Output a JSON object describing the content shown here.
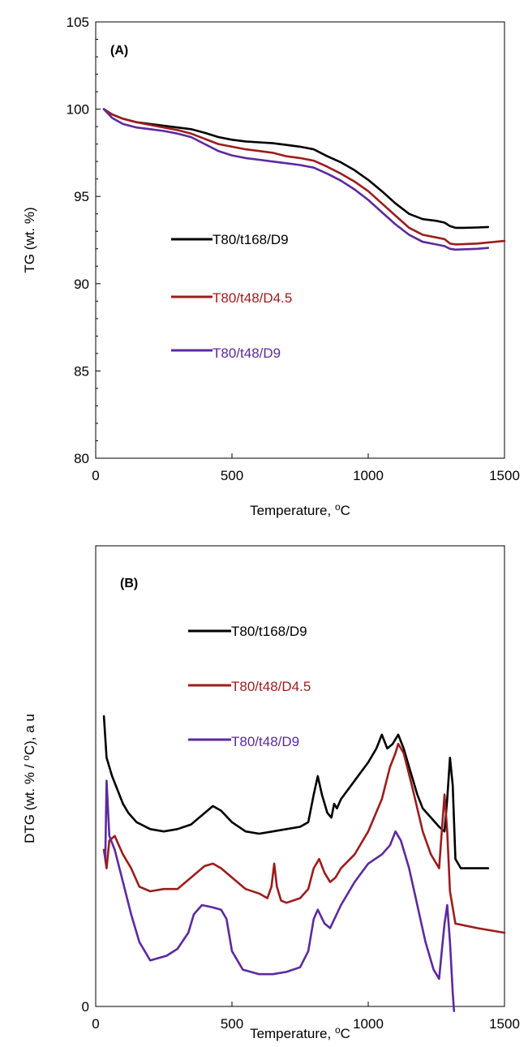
{
  "chart_data": [
    {
      "type": "line",
      "panel_label": "(A)",
      "xlabel": "Temperature,  ",
      "xlabel_sup": "o",
      "xlabel_unit": "C",
      "ylabel": "TG (wt. %)",
      "xlim": [
        0,
        1500
      ],
      "ylim": [
        80,
        105
      ],
      "xticks": [
        0,
        500,
        1000,
        1500
      ],
      "yticks": [
        80,
        85,
        90,
        95,
        100,
        105
      ],
      "grid": false,
      "legend_position": "center-left",
      "series": [
        {
          "name": "T80/t168/D9",
          "color": "#000000",
          "points": [
            [
              30,
              100
            ],
            [
              60,
              99.7
            ],
            [
              100,
              99.45
            ],
            [
              150,
              99.25
            ],
            [
              200,
              99.15
            ],
            [
              250,
              99.05
            ],
            [
              300,
              98.95
            ],
            [
              350,
              98.85
            ],
            [
              400,
              98.65
            ],
            [
              450,
              98.4
            ],
            [
              500,
              98.25
            ],
            [
              550,
              98.15
            ],
            [
              600,
              98.1
            ],
            [
              650,
              98.05
            ],
            [
              700,
              97.95
            ],
            [
              750,
              97.85
            ],
            [
              800,
              97.7
            ],
            [
              850,
              97.3
            ],
            [
              900,
              96.95
            ],
            [
              950,
              96.5
            ],
            [
              1000,
              95.95
            ],
            [
              1050,
              95.3
            ],
            [
              1100,
              94.6
            ],
            [
              1150,
              94.0
            ],
            [
              1200,
              93.7
            ],
            [
              1250,
              93.6
            ],
            [
              1280,
              93.5
            ],
            [
              1300,
              93.3
            ],
            [
              1320,
              93.2
            ],
            [
              1350,
              93.2
            ],
            [
              1400,
              93.22
            ],
            [
              1440,
              93.25
            ]
          ]
        },
        {
          "name": "T80/t48/D4.5",
          "color": "#9c1c1c",
          "points": [
            [
              30,
              100
            ],
            [
              60,
              99.7
            ],
            [
              100,
              99.45
            ],
            [
              150,
              99.25
            ],
            [
              200,
              99.1
            ],
            [
              250,
              98.95
            ],
            [
              300,
              98.8
            ],
            [
              350,
              98.6
            ],
            [
              400,
              98.3
            ],
            [
              450,
              98.0
            ],
            [
              500,
              97.85
            ],
            [
              550,
              97.7
            ],
            [
              600,
              97.6
            ],
            [
              650,
              97.5
            ],
            [
              700,
              97.3
            ],
            [
              750,
              97.2
            ],
            [
              800,
              97.05
            ],
            [
              850,
              96.7
            ],
            [
              900,
              96.3
            ],
            [
              950,
              95.85
            ],
            [
              1000,
              95.3
            ],
            [
              1050,
              94.6
            ],
            [
              1100,
              93.9
            ],
            [
              1150,
              93.2
            ],
            [
              1200,
              92.8
            ],
            [
              1250,
              92.65
            ],
            [
              1280,
              92.55
            ],
            [
              1300,
              92.3
            ],
            [
              1320,
              92.25
            ],
            [
              1400,
              92.3
            ],
            [
              1500,
              92.45
            ]
          ]
        },
        {
          "name": "T80/t48/D9",
          "color": "#5b2a9e",
          "points": [
            [
              30,
              100
            ],
            [
              60,
              99.5
            ],
            [
              100,
              99.15
            ],
            [
              150,
              98.95
            ],
            [
              200,
              98.85
            ],
            [
              250,
              98.75
            ],
            [
              300,
              98.6
            ],
            [
              350,
              98.4
            ],
            [
              400,
              98.0
            ],
            [
              450,
              97.6
            ],
            [
              500,
              97.35
            ],
            [
              550,
              97.2
            ],
            [
              600,
              97.1
            ],
            [
              650,
              97.0
            ],
            [
              700,
              96.9
            ],
            [
              750,
              96.8
            ],
            [
              800,
              96.65
            ],
            [
              850,
              96.3
            ],
            [
              900,
              95.9
            ],
            [
              950,
              95.4
            ],
            [
              1000,
              94.8
            ],
            [
              1050,
              94.1
            ],
            [
              1100,
              93.4
            ],
            [
              1150,
              92.8
            ],
            [
              1200,
              92.4
            ],
            [
              1250,
              92.25
            ],
            [
              1280,
              92.15
            ],
            [
              1300,
              92.0
            ],
            [
              1320,
              91.95
            ],
            [
              1400,
              92.0
            ],
            [
              1440,
              92.05
            ]
          ]
        }
      ]
    },
    {
      "type": "line",
      "panel_label": "(B)",
      "xlabel": "Temperature,  ",
      "xlabel_sup": "o",
      "xlabel_unit": "C",
      "ylabel": "DTG (wt. % / ",
      "ylabel_sup": "o",
      "ylabel_unit": "C), a u",
      "xlim": [
        0,
        1500
      ],
      "ylim": [
        0,
        100
      ],
      "xticks": [
        0,
        500,
        1000,
        1500
      ],
      "yticks": [
        0
      ],
      "grid": false,
      "legend_position": "upper-center",
      "series": [
        {
          "name": "T80/t168/D9",
          "color": "#000000",
          "points": [
            [
              30,
              63
            ],
            [
              40,
              54
            ],
            [
              60,
              50
            ],
            [
              80,
              47
            ],
            [
              100,
              44
            ],
            [
              120,
              42
            ],
            [
              150,
              40
            ],
            [
              200,
              38.5
            ],
            [
              250,
              38
            ],
            [
              300,
              38.5
            ],
            [
              350,
              39.5
            ],
            [
              400,
              42
            ],
            [
              430,
              43.5
            ],
            [
              460,
              42.5
            ],
            [
              500,
              40
            ],
            [
              550,
              38
            ],
            [
              600,
              37.5
            ],
            [
              650,
              38
            ],
            [
              700,
              38.5
            ],
            [
              750,
              39
            ],
            [
              780,
              40
            ],
            [
              800,
              46
            ],
            [
              815,
              50
            ],
            [
              830,
              46
            ],
            [
              850,
              42
            ],
            [
              865,
              41
            ],
            [
              875,
              44
            ],
            [
              885,
              43
            ],
            [
              900,
              45
            ],
            [
              950,
              49
            ],
            [
              1000,
              53
            ],
            [
              1030,
              56
            ],
            [
              1050,
              59
            ],
            [
              1070,
              56
            ],
            [
              1090,
              57
            ],
            [
              1110,
              59
            ],
            [
              1130,
              56
            ],
            [
              1150,
              52
            ],
            [
              1180,
              46
            ],
            [
              1200,
              43
            ],
            [
              1230,
              41
            ],
            [
              1260,
              39
            ],
            [
              1280,
              38
            ],
            [
              1290,
              45
            ],
            [
              1300,
              54
            ],
            [
              1310,
              48
            ],
            [
              1320,
              32
            ],
            [
              1340,
              30
            ],
            [
              1400,
              30
            ],
            [
              1440,
              30
            ]
          ]
        },
        {
          "name": "T80/t48/D4.5",
          "color": "#9c1c1c",
          "points": [
            [
              30,
              34
            ],
            [
              40,
              30
            ],
            [
              50,
              36
            ],
            [
              70,
              37
            ],
            [
              100,
              33
            ],
            [
              130,
              30
            ],
            [
              160,
              26
            ],
            [
              200,
              25
            ],
            [
              250,
              25.5
            ],
            [
              300,
              25.5
            ],
            [
              350,
              28
            ],
            [
              400,
              30.5
            ],
            [
              430,
              31
            ],
            [
              460,
              30
            ],
            [
              500,
              28
            ],
            [
              550,
              25.5
            ],
            [
              600,
              24.5
            ],
            [
              630,
              23.5
            ],
            [
              645,
              26
            ],
            [
              655,
              31
            ],
            [
              665,
              26
            ],
            [
              680,
              23
            ],
            [
              700,
              22.5
            ],
            [
              750,
              23.5
            ],
            [
              780,
              25.5
            ],
            [
              800,
              30
            ],
            [
              820,
              32
            ],
            [
              840,
              29
            ],
            [
              860,
              27
            ],
            [
              880,
              28
            ],
            [
              900,
              30
            ],
            [
              950,
              33
            ],
            [
              1000,
              38
            ],
            [
              1050,
              45
            ],
            [
              1080,
              52
            ],
            [
              1100,
              55
            ],
            [
              1110,
              57
            ],
            [
              1130,
              55
            ],
            [
              1160,
              48
            ],
            [
              1200,
              38
            ],
            [
              1230,
              33
            ],
            [
              1260,
              30
            ],
            [
              1270,
              38
            ],
            [
              1280,
              46
            ],
            [
              1290,
              38
            ],
            [
              1300,
              25
            ],
            [
              1320,
              18
            ],
            [
              1400,
              17
            ],
            [
              1500,
              16
            ]
          ]
        },
        {
          "name": "T80/t48/D9",
          "color": "#5b2a9e",
          "points": [
            [
              35,
              32
            ],
            [
              40,
              49
            ],
            [
              50,
              37
            ],
            [
              70,
              34
            ],
            [
              100,
              27
            ],
            [
              130,
              20
            ],
            [
              160,
              14
            ],
            [
              200,
              10
            ],
            [
              230,
              10.5
            ],
            [
              260,
              11
            ],
            [
              300,
              12.5
            ],
            [
              340,
              16
            ],
            [
              360,
              20
            ],
            [
              390,
              22
            ],
            [
              430,
              21.5
            ],
            [
              460,
              21
            ],
            [
              480,
              19
            ],
            [
              500,
              12
            ],
            [
              540,
              8
            ],
            [
              600,
              7
            ],
            [
              650,
              7
            ],
            [
              700,
              7.5
            ],
            [
              750,
              8.5
            ],
            [
              780,
              12
            ],
            [
              800,
              19
            ],
            [
              815,
              21
            ],
            [
              840,
              18
            ],
            [
              860,
              17
            ],
            [
              900,
              22
            ],
            [
              950,
              27
            ],
            [
              1000,
              31
            ],
            [
              1050,
              33
            ],
            [
              1080,
              35
            ],
            [
              1100,
              38
            ],
            [
              1120,
              36
            ],
            [
              1150,
              30
            ],
            [
              1180,
              22
            ],
            [
              1210,
              14
            ],
            [
              1240,
              8
            ],
            [
              1260,
              6
            ],
            [
              1270,
              12
            ],
            [
              1280,
              18
            ],
            [
              1290,
              22
            ],
            [
              1300,
              14
            ],
            [
              1310,
              3
            ],
            [
              1315,
              -1
            ]
          ]
        }
      ]
    }
  ]
}
